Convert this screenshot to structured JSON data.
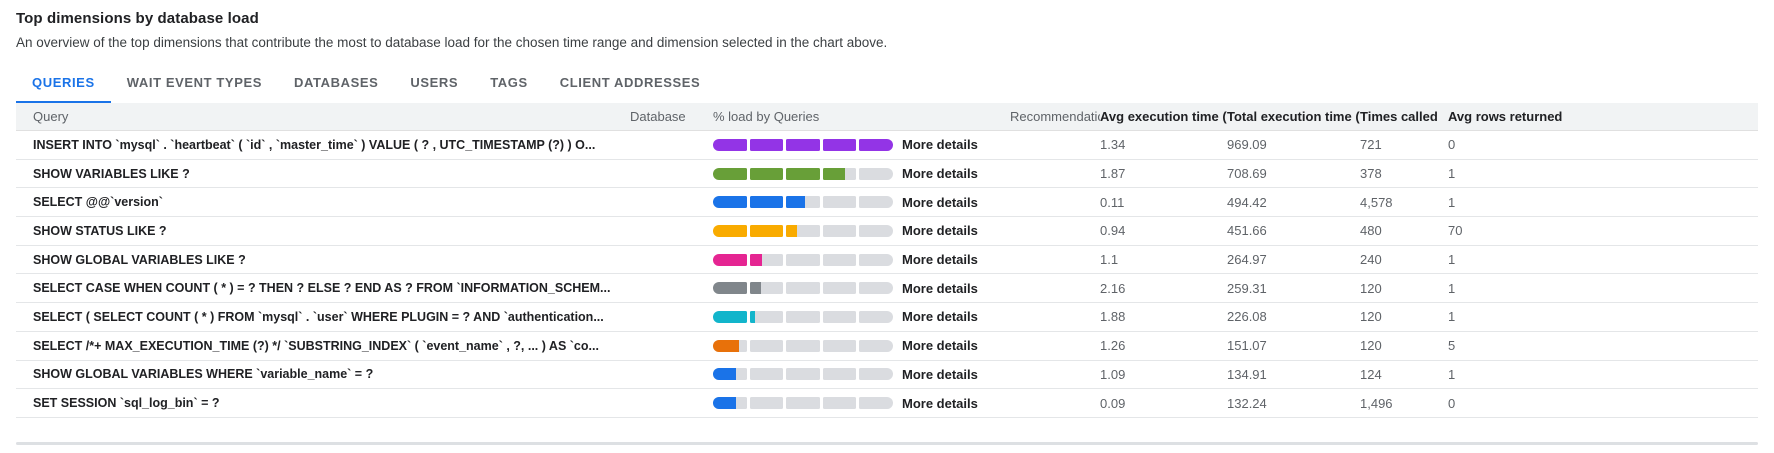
{
  "header": {
    "title": "Top dimensions by database load",
    "description": "An overview of the top dimensions that contribute the most to database load for the chosen time range and dimension selected in the chart above."
  },
  "tabs": [
    {
      "label": "QUERIES",
      "active": true
    },
    {
      "label": "WAIT EVENT TYPES",
      "active": false
    },
    {
      "label": "DATABASES",
      "active": false
    },
    {
      "label": "USERS",
      "active": false
    },
    {
      "label": "TAGS",
      "active": false
    },
    {
      "label": "CLIENT ADDRESSES",
      "active": false
    }
  ],
  "colors": {
    "accent": "#1a73e8",
    "bar_track": "#dadce0",
    "header_background": "#f1f3f4"
  },
  "table": {
    "columns": [
      {
        "label": "Query",
        "dark": false
      },
      {
        "label": "Database",
        "dark": false
      },
      {
        "label": "% load by Queries",
        "dark": false
      },
      {
        "label": "Recommendations",
        "dark": false
      },
      {
        "label": "Avg execution time (ms)",
        "dark": true
      },
      {
        "label": "Total execution time (ms)",
        "dark": true,
        "sorted": "desc"
      },
      {
        "label": "Times called",
        "dark": true
      },
      {
        "label": "Avg rows returned",
        "dark": true
      }
    ],
    "sort_icon": "↓",
    "more_details_label": "More details",
    "rows": [
      {
        "query": "INSERT INTO `mysql` . `heartbeat` ( `id` , `master_time` ) VALUE ( ? , UTC_TIMESTAMP (?) ) O...",
        "database": "",
        "load_pct": 100,
        "bar_color": "#9334e6",
        "recommendations": "",
        "avg_execution_ms": "1.34",
        "total_execution_ms": "969.09",
        "times_called": "721",
        "avg_rows_returned": "0"
      },
      {
        "query": "SHOW VARIABLES LIKE ?",
        "database": "",
        "load_pct": 73,
        "bar_color": "#689f38",
        "recommendations": "",
        "avg_execution_ms": "1.87",
        "total_execution_ms": "708.69",
        "times_called": "378",
        "avg_rows_returned": "1"
      },
      {
        "query": "SELECT @@`version`",
        "database": "",
        "load_pct": 51,
        "bar_color": "#1a73e8",
        "recommendations": "",
        "avg_execution_ms": "0.11",
        "total_execution_ms": "494.42",
        "times_called": "4,578",
        "avg_rows_returned": "1"
      },
      {
        "query": "SHOW STATUS LIKE ?",
        "database": "",
        "load_pct": 46.6,
        "bar_color": "#f9ab00",
        "recommendations": "",
        "avg_execution_ms": "0.94",
        "total_execution_ms": "451.66",
        "times_called": "480",
        "avg_rows_returned": "70"
      },
      {
        "query": "SHOW GLOBAL VARIABLES LIKE ?",
        "database": "",
        "load_pct": 27.3,
        "bar_color": "#e52592",
        "recommendations": "",
        "avg_execution_ms": "1.1",
        "total_execution_ms": "264.97",
        "times_called": "240",
        "avg_rows_returned": "1"
      },
      {
        "query": "SELECT CASE WHEN COUNT ( * ) = ? THEN ? ELSE ? END AS ? FROM `INFORMATION_SCHEM...",
        "database": "",
        "load_pct": 26.8,
        "bar_color": "#80868b",
        "recommendations": "",
        "avg_execution_ms": "2.16",
        "total_execution_ms": "259.31",
        "times_called": "120",
        "avg_rows_returned": "1"
      },
      {
        "query": "SELECT ( SELECT COUNT ( * ) FROM `mysql` . `user` WHERE PLUGIN = ? AND `authentication...",
        "database": "",
        "load_pct": 23.3,
        "bar_color": "#12b5cb",
        "recommendations": "",
        "avg_execution_ms": "1.88",
        "total_execution_ms": "226.08",
        "times_called": "120",
        "avg_rows_returned": "1"
      },
      {
        "query": "SELECT /*+ MAX_EXECUTION_TIME (?) */ `SUBSTRING_INDEX` ( `event_name` , ?, ... ) AS `co...",
        "database": "",
        "load_pct": 15.6,
        "bar_color": "#e8710a",
        "recommendations": "",
        "avg_execution_ms": "1.26",
        "total_execution_ms": "151.07",
        "times_called": "120",
        "avg_rows_returned": "5"
      },
      {
        "query": "SHOW GLOBAL VARIABLES WHERE `variable_name` = ?",
        "database": "",
        "load_pct": 13.9,
        "bar_color": "#1a73e8",
        "recommendations": "",
        "avg_execution_ms": "1.09",
        "total_execution_ms": "134.91",
        "times_called": "124",
        "avg_rows_returned": "1"
      },
      {
        "query": "SET SESSION `sql_log_bin` = ?",
        "database": "",
        "load_pct": 13.6,
        "bar_color": "#1a73e8",
        "recommendations": "",
        "avg_execution_ms": "0.09",
        "total_execution_ms": "132.24",
        "times_called": "1,496",
        "avg_rows_returned": "0"
      }
    ]
  }
}
